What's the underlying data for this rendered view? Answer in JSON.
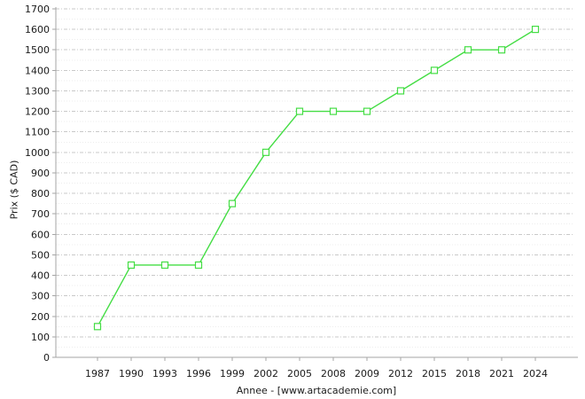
{
  "chart_data": {
    "type": "line",
    "categories": [
      "1987",
      "1990",
      "1993",
      "1996",
      "1999",
      "2002",
      "2005",
      "2008",
      "2009",
      "2012",
      "2015",
      "2018",
      "2021",
      "2024"
    ],
    "values": [
      150,
      450,
      450,
      450,
      750,
      1000,
      1200,
      1200,
      1200,
      1300,
      1400,
      1500,
      1500,
      1600
    ],
    "series_name": "Prix",
    "xlabel": "Annee - [www.artacademie.com]",
    "ylabel": "Prix ($ CAD)",
    "ylim": [
      0,
      1700
    ],
    "ytick_step": 100,
    "yticks": [
      0,
      100,
      200,
      300,
      400,
      500,
      600,
      700,
      800,
      900,
      1000,
      1100,
      1200,
      1300,
      1400,
      1500,
      1600,
      1700
    ],
    "grid": true,
    "legend_position": "none",
    "marker": "open-square",
    "colors": {
      "line": "#44dd44",
      "marker_fill": "#ffffff",
      "grid": "#c9c9c9",
      "grid_minor": "#ededed",
      "axis": "#a6a6a6",
      "text": "#1a1a1a",
      "background": "#ffffff"
    }
  }
}
